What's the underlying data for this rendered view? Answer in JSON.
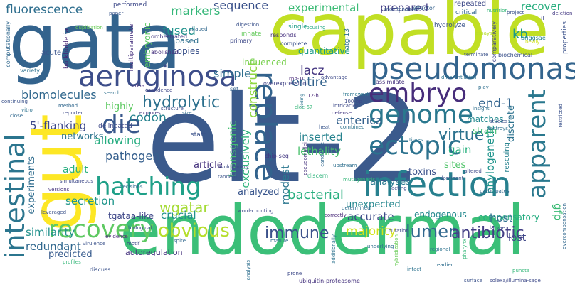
{
  "words": [
    {
      "text": "elt-2",
      "color": "#3b5a8c"
    },
    {
      "text": "endodermal",
      "color": "#3bbf78"
    },
    {
      "text": "gata",
      "color": "#33638d"
    },
    {
      "text": "capable",
      "color": "#c1df24"
    },
    {
      "text": "gut",
      "color": "#fde725"
    },
    {
      "text": "infection",
      "color": "#27808e"
    },
    {
      "text": "pseudomonas",
      "color": "#33648d"
    },
    {
      "text": "aeruginosa",
      "color": "#3d4e8a"
    },
    {
      "text": "intestinal",
      "color": "#2b758e"
    },
    {
      "text": "replace",
      "color": "#33638d"
    },
    {
      "text": "genome",
      "color": "#2a788e"
    },
    {
      "text": "embryo",
      "color": "#472d7b"
    },
    {
      "text": "ectopic",
      "color": "#2c728e"
    },
    {
      "text": "hatching",
      "color": "#1fa088"
    },
    {
      "text": "die",
      "color": "#38588c"
    },
    {
      "text": "recovery",
      "color": "#5ec962"
    },
    {
      "text": "apparent",
      "color": "#2a788e"
    },
    {
      "text": "hydrolytic",
      "color": "#2d718e"
    },
    {
      "text": "obvious",
      "color": "#b5de2b"
    },
    {
      "text": "immune",
      "color": "#3b518b"
    },
    {
      "text": "lumen",
      "color": "#31688e"
    },
    {
      "text": "antibiotic",
      "color": "#433e85"
    },
    {
      "text": "wgatar",
      "color": "#a5db36"
    },
    {
      "text": "virtue",
      "color": "#2c728e"
    },
    {
      "text": "fluorescence",
      "color": "#2e6e8e"
    },
    {
      "text": "sequence",
      "color": "#3b528b"
    },
    {
      "text": "experimental",
      "color": "#3bbb75"
    },
    {
      "text": "prepared",
      "color": "#433e85"
    },
    {
      "text": "markers",
      "color": "#35b779"
    },
    {
      "text": "fused",
      "color": "#20928c"
    },
    {
      "text": "construct",
      "color": "#90d743"
    },
    {
      "text": "simple",
      "color": "#2e6e8e"
    },
    {
      "text": "lacz",
      "color": "#453781"
    },
    {
      "text": "entire",
      "color": "#33638d"
    },
    {
      "text": "end-1",
      "color": "#32648e"
    },
    {
      "text": "biomolecules",
      "color": "#31688e"
    },
    {
      "text": "codon",
      "color": "#26828e"
    },
    {
      "text": "enterica",
      "color": "#34618d"
    },
    {
      "text": "kb",
      "color": "#1f9a8a"
    },
    {
      "text": "recover",
      "color": "#29af7f"
    },
    {
      "text": "phylogenetic",
      "color": "#1f948c"
    },
    {
      "text": "discrete",
      "color": "#2c728e"
    },
    {
      "text": "transgenic",
      "color": "#44bf70"
    },
    {
      "text": "exclusively",
      "color": "#2fb47c"
    },
    {
      "text": "modest",
      "color": "#2a768e"
    },
    {
      "text": "pathogen",
      "color": "#355f8d"
    },
    {
      "text": "allowing",
      "color": "#27ad81"
    },
    {
      "text": "5'-flanking",
      "color": "#3e4989"
    },
    {
      "text": "article",
      "color": "#46337e"
    },
    {
      "text": "inserted",
      "color": "#26828e"
    },
    {
      "text": "lethality",
      "color": "#4ac16d"
    },
    {
      "text": "gain",
      "color": "#2ab07f"
    },
    {
      "text": "sites",
      "color": "#50c46a"
    },
    {
      "text": "analyses",
      "color": "#2a788e"
    },
    {
      "text": "toxins",
      "color": "#3b528b"
    },
    {
      "text": "bacterial",
      "color": "#29af7f"
    },
    {
      "text": "analyzed",
      "color": "#39568c"
    },
    {
      "text": "secretion",
      "color": "#1f968b"
    },
    {
      "text": "crucial",
      "color": "#21918c"
    },
    {
      "text": "accurate",
      "color": "#3e4c8a"
    },
    {
      "text": "endogenous",
      "color": "#23898e"
    },
    {
      "text": "compensatory",
      "color": "#26ad81"
    },
    {
      "text": "similarity",
      "color": "#21918c"
    },
    {
      "text": "redundant",
      "color": "#31688e"
    },
    {
      "text": "majority",
      "color": "#d2e21b"
    },
    {
      "text": "host",
      "color": "#2d708e"
    },
    {
      "text": "lost",
      "color": "#3f4788"
    },
    {
      "text": "gfp",
      "color": "#3bbb75"
    },
    {
      "text": "experiments",
      "color": "#2f6c8e"
    },
    {
      "text": "adult",
      "color": "#29af7f"
    },
    {
      "text": "predicted",
      "color": "#375b8d"
    },
    {
      "text": "highly",
      "color": "#5ec962"
    },
    {
      "text": "networks",
      "color": "#2c738e"
    },
    {
      "text": "tgataa-like",
      "color": "#3f4889"
    },
    {
      "text": "unexpected",
      "color": "#24878e"
    },
    {
      "text": "matches",
      "color": "#23898e"
    },
    {
      "text": "strain",
      "color": "#40bd72"
    },
    {
      "text": "quantitative",
      "color": "#1e9b8a"
    },
    {
      "text": "influenced",
      "color": "#7ad151"
    },
    {
      "text": "copies",
      "color": "#3b528b"
    },
    {
      "text": "based",
      "color": "#2e6f8e"
    },
    {
      "text": "embryonic",
      "color": "#5cc863"
    },
    {
      "text": "multiparameter",
      "color": "#46327e"
    },
    {
      "text": "burkholderia",
      "color": "#482475"
    },
    {
      "text": "computationally",
      "color": "#31688e"
    },
    {
      "text": "acute",
      "color": "#3a548c"
    },
    {
      "text": "variety",
      "color": "#2d718e"
    },
    {
      "text": "performed",
      "color": "#3e4989"
    },
    {
      "text": "paper",
      "color": "#39568c"
    },
    {
      "text": "maintenance",
      "color": "#38588c"
    },
    {
      "text": "effector",
      "color": "#34618d"
    },
    {
      "text": "repeated",
      "color": "#3e4a89"
    },
    {
      "text": "nutrition",
      "color": "#35b779"
    },
    {
      "text": "project",
      "color": "#3a538b"
    },
    {
      "text": "deletion",
      "color": "#443983"
    },
    {
      "text": "duplication",
      "color": "#6ccd5a"
    },
    {
      "text": "shaped",
      "color": "#31688e"
    },
    {
      "text": "orchestrated",
      "color": "#443a83"
    },
    {
      "text": "abolished",
      "color": "#46327e"
    },
    {
      "text": "digestion",
      "color": "#3b528b"
    },
    {
      "text": "primary",
      "color": "#3e4a89"
    },
    {
      "text": "single",
      "color": "#1f9e89"
    },
    {
      "text": "innate",
      "color": "#66cb5d"
    },
    {
      "text": "focusing",
      "color": "#22a884"
    },
    {
      "text": "responds",
      "color": "#46307e"
    },
    {
      "text": "complete",
      "color": "#3b528b"
    },
    {
      "text": "atg-13",
      "color": "#2c728e"
    },
    {
      "text": "hydrolyze",
      "color": "#3a548c"
    },
    {
      "text": "critical",
      "color": "#31688e"
    },
    {
      "text": "comparatively",
      "color": "#404588"
    },
    {
      "text": "newly",
      "color": "#d2e21b"
    },
    {
      "text": "assays",
      "color": "#b5de2b"
    },
    {
      "text": "briggsae",
      "color": "#26828e"
    },
    {
      "text": "properties",
      "color": "#3b528b"
    },
    {
      "text": "terminate",
      "color": "#3b528b"
    },
    {
      "text": "biochemical",
      "color": "#3b528b"
    },
    {
      "text": "il",
      "color": "#3e4989"
    },
    {
      "text": "rpn-10",
      "color": "#482878"
    },
    {
      "text": "advantage",
      "color": "#3e4a89"
    },
    {
      "text": "overexpression",
      "color": "#414487"
    },
    {
      "text": "assimilate",
      "color": "#46337e"
    },
    {
      "text": "differentiation",
      "color": "#2c728e"
    },
    {
      "text": "play",
      "color": "#2e6f8e"
    },
    {
      "text": "cdna",
      "color": "#46307e"
    },
    {
      "text": "confidence",
      "color": "#3f4788"
    },
    {
      "text": "search",
      "color": "#2e6f8e"
    },
    {
      "text": "set",
      "color": "#34618d"
    },
    {
      "text": "12-h",
      "color": "#482878"
    },
    {
      "text": "framework",
      "color": "#2a768e"
    },
    {
      "text": "100-bp",
      "color": "#3e4a89"
    },
    {
      "text": "clec-67",
      "color": "#35b779"
    },
    {
      "text": "coding",
      "color": "#2c728e"
    },
    {
      "text": "intricacies",
      "color": "#3e4a89"
    },
    {
      "text": "defense",
      "color": "#443983"
    },
    {
      "text": "insight",
      "color": "#2e6e8e"
    },
    {
      "text": "heat",
      "color": "#39568c"
    },
    {
      "text": "combined",
      "color": "#2c728e"
    },
    {
      "text": "times",
      "color": "#2c728e"
    },
    {
      "text": "studies",
      "color": "#3b528b"
    },
    {
      "text": "destroys",
      "color": "#2c728e"
    },
    {
      "text": "restricted",
      "color": "#3b528b"
    },
    {
      "text": "continuing",
      "color": "#3b528b"
    },
    {
      "text": "method",
      "color": "#31688e"
    },
    {
      "text": "reporter",
      "color": "#3e4a89"
    },
    {
      "text": "vitro",
      "color": "#2c728e"
    },
    {
      "text": "structure",
      "color": "#3e4a89"
    },
    {
      "text": "size",
      "color": "#2e6e8e"
    },
    {
      "text": "explores",
      "color": "#46337e"
    },
    {
      "text": "delineated",
      "color": "#3e4a89"
    },
    {
      "text": "close",
      "color": "#31688e"
    },
    {
      "text": "start",
      "color": "#3b528b"
    },
    {
      "text": "chip-seq",
      "color": "#443983"
    },
    {
      "text": "evolutionary",
      "color": "#3e4a89"
    },
    {
      "text": "pseudomallei",
      "color": "#46337e"
    },
    {
      "text": "candidate",
      "color": "#31688e"
    },
    {
      "text": "upstream",
      "color": "#2e6f8e"
    },
    {
      "text": "discern",
      "color": "#2fb47c"
    },
    {
      "text": "simultaneous",
      "color": "#3e4a89"
    },
    {
      "text": "tandem",
      "color": "#3b528b"
    },
    {
      "text": "decisions",
      "color": "#2e6e8e"
    },
    {
      "text": "altered",
      "color": "#3e4a89"
    },
    {
      "text": "dominant",
      "color": "#3b528b"
    },
    {
      "text": "mutagenesis",
      "color": "#35b779"
    },
    {
      "text": "acting",
      "color": "#3e4a89"
    },
    {
      "text": "participates",
      "color": "#31688e"
    },
    {
      "text": "versions",
      "color": "#46337e"
    },
    {
      "text": "leveraged",
      "color": "#3b528b"
    },
    {
      "text": "word-counting",
      "color": "#3e4a89"
    },
    {
      "text": "correctly",
      "color": "#482878"
    },
    {
      "text": "determined",
      "color": "#2e6e8e"
    },
    {
      "text": "larvae",
      "color": "#3e4a89"
    },
    {
      "text": "biological",
      "color": "#3b528b"
    },
    {
      "text": "mature",
      "color": "#2e6e8e"
    },
    {
      "text": "underlying",
      "color": "#2e6f8e"
    },
    {
      "text": "regional",
      "color": "#2c728e"
    },
    {
      "text": "pharynx",
      "color": "#35b779"
    },
    {
      "text": "additionally",
      "color": "#2c728e"
    },
    {
      "text": "evidence",
      "color": "#482878"
    },
    {
      "text": "virulence",
      "color": "#3b528b"
    },
    {
      "text": "motif",
      "color": "#3e4a89"
    },
    {
      "text": "spite",
      "color": "#31688e"
    },
    {
      "text": "autoregulation",
      "color": "#46337e"
    },
    {
      "text": "profiles",
      "color": "#35b779"
    },
    {
      "text": "discuss",
      "color": "#3b528b"
    },
    {
      "text": "intact",
      "color": "#2c728e"
    },
    {
      "text": "earlier",
      "color": "#2e6e8e"
    },
    {
      "text": "puncta",
      "color": "#35b779"
    },
    {
      "text": "hybridization",
      "color": "#6ccd5a"
    },
    {
      "text": "curation",
      "color": "#3e4a89"
    },
    {
      "text": "ubiquitin-proteasome",
      "color": "#46337e"
    },
    {
      "text": "surface",
      "color": "#3b528b"
    },
    {
      "text": "solexa/illumina-sage",
      "color": "#3e4a89"
    },
    {
      "text": "overcompensation",
      "color": "#31688e"
    },
    {
      "text": "prone",
      "color": "#3e4a89"
    },
    {
      "text": "analysis",
      "color": "#2e6f8e"
    },
    {
      "text": "rescuing",
      "color": "#26828e"
    }
  ]
}
